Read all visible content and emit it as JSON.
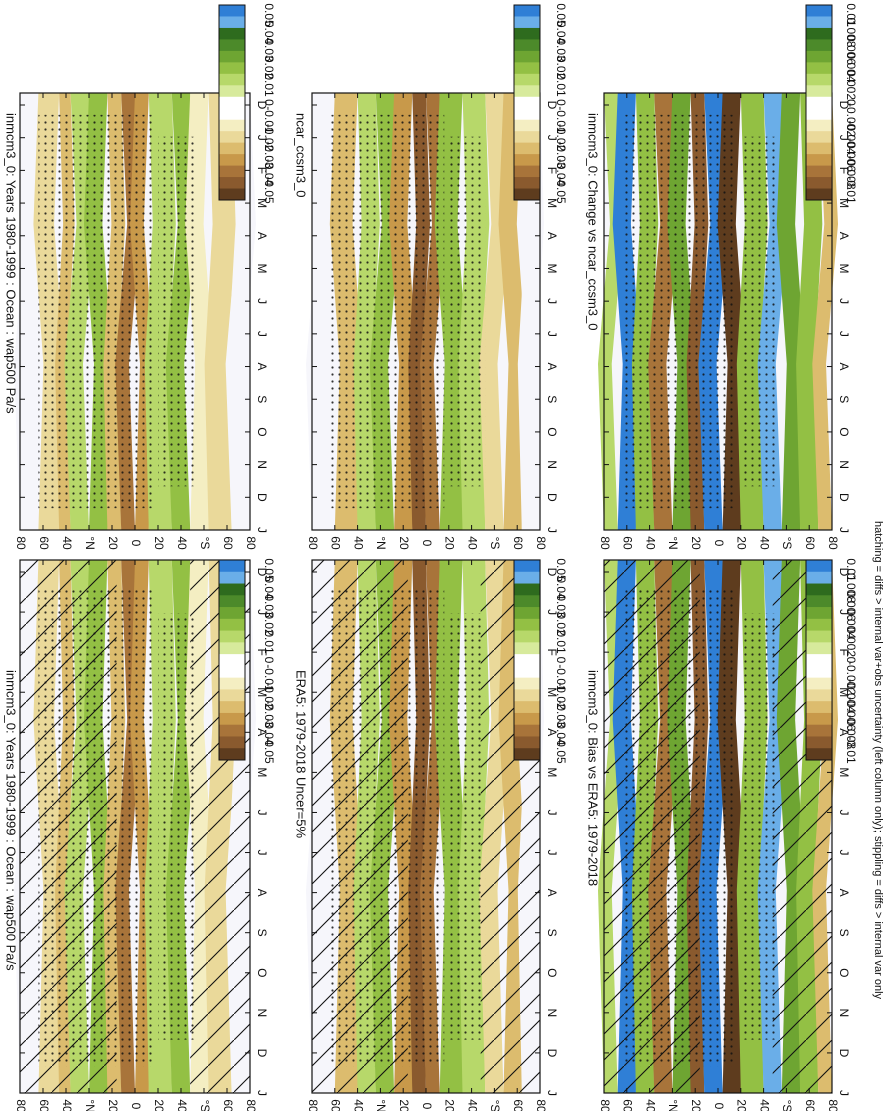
{
  "footer_note": "hatching = diffs > internal var+obs uncertainty (left column only); stippling = diffs > internal var only",
  "colors": {
    "b6": "#2f7fd6",
    "b5": "#6aaee8",
    "g5": "#2e6b1e",
    "g4": "#4c8a2a",
    "g3": "#6ea532",
    "g2": "#93c044",
    "g1": "#b7d86a",
    "g0": "#d7ea9c",
    "w": "#ffffff",
    "t0": "#f4eec2",
    "t1": "#ead99a",
    "t2": "#dcbc6e",
    "t3": "#c8994a",
    "t4": "#a8743a",
    "t5": "#8a5a2e",
    "t6": "#5e3c1e",
    "bg": "#f6f6fb"
  },
  "chart_data": [
    {
      "type": "heatmap",
      "id": "p1",
      "title": "inmcm3_0: Years 1980-1999 : Ocean : wap500 Pa/s",
      "x_ticks": [
        "D",
        "J",
        "F",
        "M",
        "A",
        "M",
        "J",
        "J",
        "A",
        "S",
        "O",
        "N",
        "D",
        "J"
      ],
      "y_ticks": [
        "80",
        "60",
        "40",
        "°N",
        "20",
        "0",
        "20",
        "40",
        "°S",
        "60",
        "80"
      ],
      "colorbar": [
        "0.05",
        "0.04",
        "0.03",
        "0.02",
        "0.01",
        "0",
        "-0.01",
        "-0.02",
        "-0.03",
        "-0.04",
        "-0.05"
      ],
      "hatching": true,
      "stippling": true
    },
    {
      "type": "heatmap",
      "id": "p2",
      "title": "inmcm3_0: Years 1980-1999 : Ocean : wap500 Pa/s",
      "x_ticks": [
        "D",
        "J",
        "F",
        "M",
        "A",
        "M",
        "J",
        "J",
        "A",
        "S",
        "O",
        "N",
        "D",
        "J"
      ],
      "y_ticks": [
        "80",
        "60",
        "40",
        "°N",
        "20",
        "0",
        "20",
        "40",
        "°S",
        "60",
        "80"
      ],
      "colorbar": [
        "0.05",
        "0.04",
        "0.03",
        "0.02",
        "0.01",
        "0",
        "-0.01",
        "-0.02",
        "-0.03",
        "-0.04",
        "-0.05"
      ],
      "hatching": false,
      "stippling": true
    },
    {
      "type": "heatmap",
      "id": "p3",
      "title": "ERA5: 1979-2018 Uncer=5%",
      "x_ticks": [
        "D",
        "J",
        "F",
        "M",
        "A",
        "M",
        "J",
        "J",
        "A",
        "S",
        "O",
        "N",
        "D",
        "J"
      ],
      "y_ticks": [
        "80",
        "60",
        "40",
        "°N",
        "20",
        "0",
        "20",
        "40",
        "°S",
        "60",
        "80"
      ],
      "colorbar": [
        "0.05",
        "0.04",
        "0.03",
        "0.02",
        "0.01",
        "0",
        "-0.01",
        "-0.02",
        "-0.03",
        "-0.04",
        "-0.05"
      ],
      "hatching": true,
      "stippling": true
    },
    {
      "type": "heatmap",
      "id": "p4",
      "title": "ncar_ccsm3_0",
      "x_ticks": [
        "D",
        "J",
        "F",
        "M",
        "A",
        "M",
        "J",
        "J",
        "A",
        "S",
        "O",
        "N",
        "D",
        "J"
      ],
      "y_ticks": [
        "80",
        "60",
        "40",
        "°N",
        "20",
        "0",
        "20",
        "40",
        "°S",
        "60",
        "80"
      ],
      "colorbar": [
        "0.05",
        "0.04",
        "0.03",
        "0.02",
        "0.01",
        "0",
        "-0.01",
        "-0.02",
        "-0.03",
        "-0.04",
        "-0.05"
      ],
      "hatching": false,
      "stippling": true
    },
    {
      "type": "heatmap",
      "id": "p5",
      "title": "inmcm3_0: Bias vs ERA5: 1979-2018",
      "x_ticks": [
        "D",
        "J",
        "F",
        "M",
        "A",
        "M",
        "J",
        "J",
        "A",
        "S",
        "O",
        "N",
        "D",
        "J"
      ],
      "y_ticks": [
        "80",
        "60",
        "40",
        "°N",
        "20",
        "0",
        "20",
        "40",
        "°S",
        "60",
        "80"
      ],
      "colorbar": [
        "0.01",
        "0.008",
        "0.006",
        "0.004",
        "0.002",
        "0",
        "-0.002",
        "-0.004",
        "-0.006",
        "-0.008",
        "-0.01"
      ],
      "hatching": true,
      "stippling": true
    },
    {
      "type": "heatmap",
      "id": "p6",
      "title": "inmcm3_0: Change vs ncar_ccsm3_0",
      "x_ticks": [
        "D",
        "J",
        "F",
        "M",
        "A",
        "M",
        "J",
        "J",
        "A",
        "S",
        "O",
        "N",
        "D",
        "J"
      ],
      "y_ticks": [
        "80",
        "60",
        "40",
        "°N",
        "20",
        "0",
        "20",
        "40",
        "°S",
        "60",
        "80"
      ],
      "colorbar": [
        "0.01",
        "0.008",
        "0.006",
        "0.004",
        "0.002",
        "0",
        "-0.002",
        "-0.004",
        "-0.006",
        "-0.008",
        "-0.01"
      ],
      "hatching": false,
      "stippling": true
    }
  ]
}
